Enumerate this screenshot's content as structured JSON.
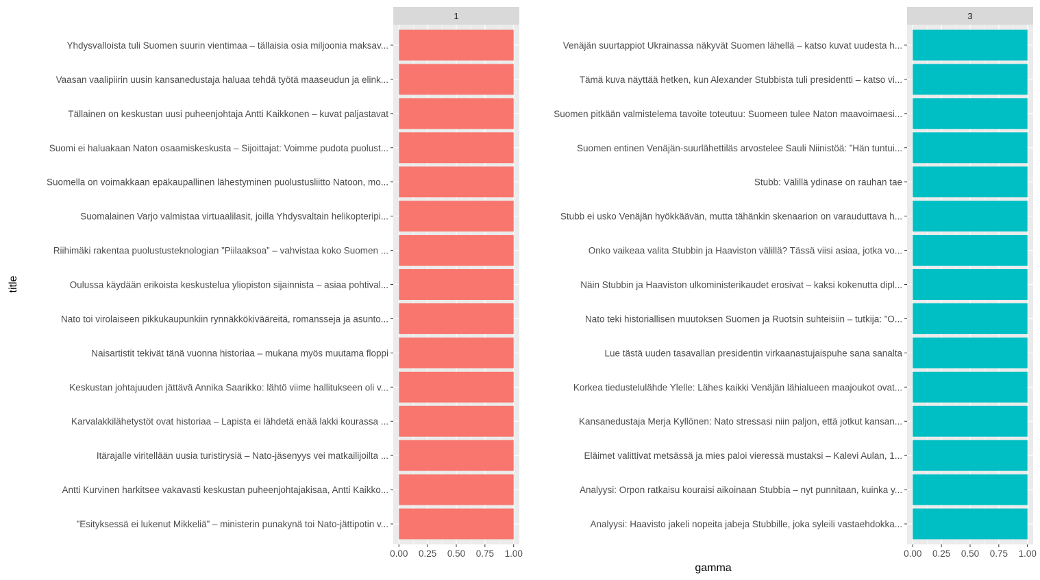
{
  "chart_data": {
    "type": "bar",
    "orientation": "horizontal",
    "xlabel": "gamma",
    "ylabel": "title",
    "xlim": [
      0,
      1
    ],
    "x_ticks": [
      "0.00",
      "0.25",
      "0.50",
      "0.75",
      "1.00"
    ],
    "grid": true,
    "legend": "none",
    "panels": [
      {
        "facet": "1",
        "color": "#F8766D",
        "categories": [
          "Yhdysvalloista tuli Suomen suurin vientimaa – tällaisia osia miljoonia maksav...",
          "Vaasan vaalipiirin uusin kansanedustaja haluaa tehdä työtä maaseudun ja elink...",
          "Tällainen on keskustan uusi puheenjohtaja Antti Kaikkonen – kuvat paljastavat",
          "Suomi ei haluakaan Naton osaamiskeskusta – Sijoittajat: Voimme pudota puolust...",
          "Suomella on voimakkaan epäkaupallinen lähestyminen puolustusliitto Natoon, mo...",
          "Suomalainen Varjo valmistaa virtuaalilasit, joilla Yhdysvaltain helikopteripi...",
          "Riihimäki rakentaa puolustusteknologian ”Piilaaksoa” – vahvistaa koko Suomen ...",
          "Oulussa käydään erikoista keskustelua yliopiston sijainnista – asiaa pohtival...",
          "Nato toi virolaiseen pikkukaupunkiin rynnäkkökivääreitä, romansseja ja asunto...",
          "Naisartistit tekivät tänä vuonna historiaa – mukana myös muutama floppi",
          "Keskustan johtajuuden jättävä Annika Saarikko: lähtö viime hallitukseen oli v...",
          "Karvalakkilähetystöt ovat historiaa – Lapista ei lähdetä enää lakki kourassa ...",
          "Itärajalle viritellään uusia turistirysiä – Nato-jäsenyys vei matkailijoilta ...",
          "Antti Kurvinen harkitsee vakavasti keskustan puheenjohtajakisaa, Antti Kaikko...",
          "”Esityksessä ei lukenut Mikkeliä” – ministerin punakynä toi Nato-jättipotin v..."
        ],
        "values": [
          1,
          1,
          1,
          1,
          1,
          1,
          1,
          1,
          1,
          1,
          1,
          1,
          1,
          1,
          1
        ]
      },
      {
        "facet": "3",
        "color": "#00BFC4",
        "categories": [
          "Venäjän suurtappiot Ukrainassa näkyvät Suomen lähellä – katso kuvat uudesta h...",
          "Tämä kuva näyttää hetken, kun Alexander Stubbista tuli presidentti – katso vi...",
          "Suomen pitkään valmistelema tavoite toteutuu: Suomeen tulee Naton maavoimaesi...",
          "Suomen entinen Venäjän-suurlähettiläs arvostelee Sauli Niinistöä: ”Hän tuntui...",
          "Stubb: Välillä ydinase on rauhan tae",
          "Stubb ei usko Venäjän hyökkäävän, mutta tähänkin skenaarion on varauduttava h...",
          "Onko vaikeaa valita Stubbin ja Haaviston välillä? Tässä viisi asiaa, jotka vo...",
          "Näin Stubbin ja Haaviston ulkoministerikaudet erosivat – kaksi kokenutta dipl...",
          "Nato teki historiallisen muutoksen Suomen ja Ruotsin suhteisiin – tutkija: ”O...",
          "Lue tästä uuden tasavallan presidentin virkaanastujaispuhe sana sanalta",
          "Korkea tiedustelulähde Ylelle: Lähes kaikki Venäjän lähialueen maajoukot ovat...",
          "Kansanedustaja Merja Kyllönen: Nato stressasi niin paljon, että jotkut kansan...",
          "Eläimet valittivat metsässä ja mies paloi vieressä mustaksi – Kalevi Aulan, 1...",
          "Analyysi: Orpon ratkaisu kouraisi aikoinaan Stubbia – nyt punnitaan, kuinka y...",
          "Analyysi: Haavisto jakeli nopeita jabeja Stubbille, joka syleili vastaehdokka..."
        ],
        "values": [
          1,
          1,
          1,
          1,
          1,
          1,
          1,
          1,
          1,
          1,
          1,
          1,
          1,
          1,
          1
        ]
      }
    ]
  }
}
